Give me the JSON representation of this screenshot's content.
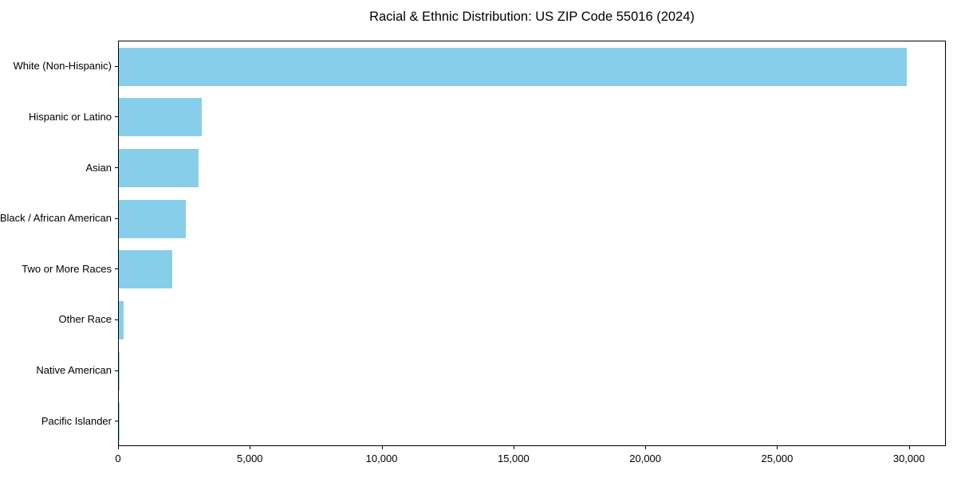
{
  "chart_data": {
    "type": "bar",
    "orientation": "horizontal",
    "title": "Racial & Ethnic Distribution: US ZIP Code 55016 (2024)",
    "categories": [
      "White (Non-Hispanic)",
      "Hispanic or Latino",
      "Asian",
      "Black / African American",
      "Two or More Races",
      "Other Race",
      "Native American",
      "Pacific Islander"
    ],
    "values": [
      29900,
      3140,
      3010,
      2530,
      2020,
      190,
      25,
      10
    ],
    "xlabel": "",
    "ylabel": "",
    "xlim": [
      0,
      31400
    ],
    "xticks": [
      0,
      5000,
      10000,
      15000,
      20000,
      25000,
      30000
    ],
    "xtick_labels": [
      "0",
      "5,000",
      "10,000",
      "15,000",
      "20,000",
      "25,000",
      "30,000"
    ],
    "bar_color": "#87ceeb",
    "axis_color": "#000000",
    "text_color": "#000000",
    "background_color": "#ffffff",
    "grid": false,
    "legend": null
  }
}
